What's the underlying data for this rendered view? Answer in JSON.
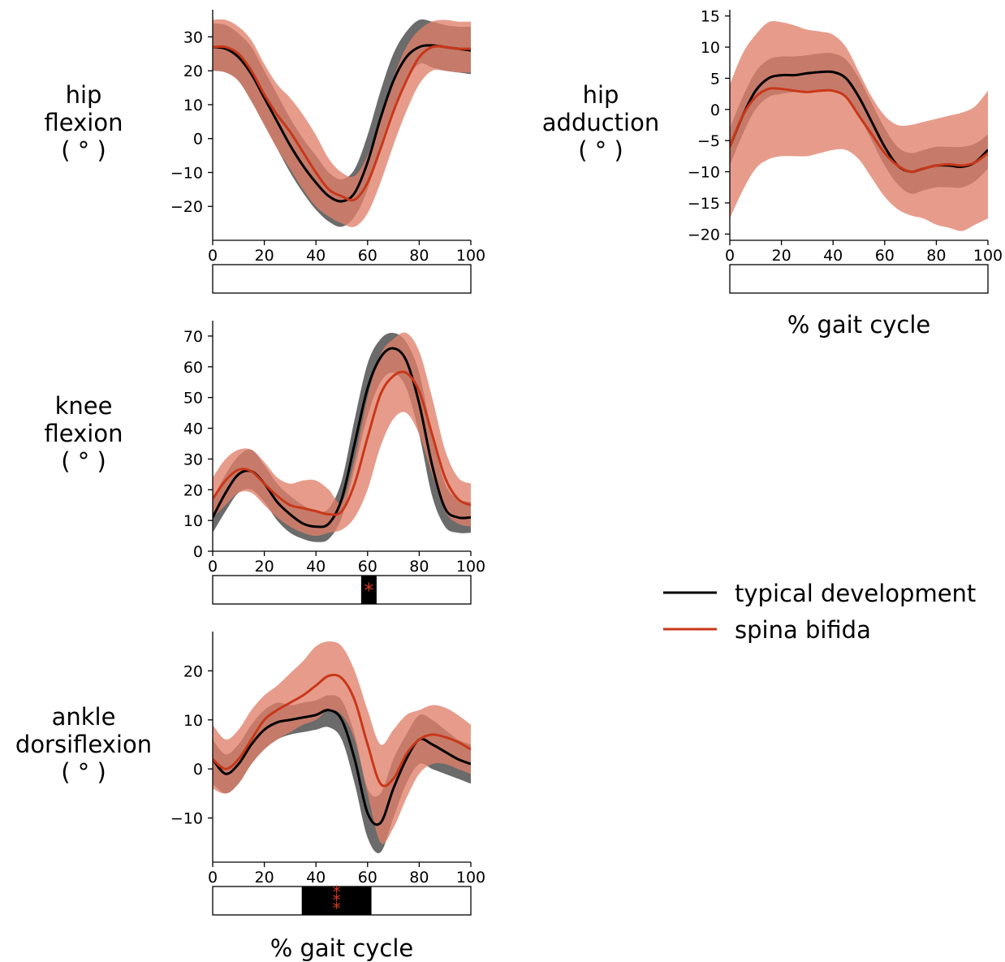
{
  "colors": {
    "typical": "#000000",
    "typical_band": "#6b6b6b",
    "spina": "#c8381a",
    "spina_band": "#e0806a",
    "significance_bar": "#000000",
    "star": "#d83a1f"
  },
  "legend": {
    "typical_label": "typical development",
    "spina_label": "spina bifida"
  },
  "chart_data": [
    {
      "id": "hip-flexion",
      "type": "line",
      "panel_label": [
        "hip",
        "flexion",
        "( ° )"
      ],
      "xlabel": "",
      "ylim": [
        -30,
        38
      ],
      "xlim": [
        0,
        100
      ],
      "xticks": [
        "0",
        "20",
        "40",
        "60",
        "80",
        "100"
      ],
      "yticks": [
        {
          "value": -20,
          "label": "−20"
        },
        {
          "value": -10,
          "label": "−10"
        },
        {
          "value": 0,
          "label": "0"
        },
        {
          "value": 10,
          "label": "10"
        },
        {
          "value": 20,
          "label": "20"
        },
        {
          "value": 30,
          "label": "30"
        }
      ],
      "x": [
        0,
        5,
        10,
        15,
        20,
        25,
        30,
        35,
        40,
        45,
        50,
        55,
        60,
        65,
        70,
        75,
        80,
        85,
        90,
        95,
        100
      ],
      "series": [
        {
          "name": "typical development",
          "mean": [
            27,
            26.5,
            24,
            19,
            12,
            5,
            -2,
            -8,
            -13,
            -17,
            -18.5,
            -16,
            -7,
            6,
            17,
            24,
            27,
            27.5,
            27,
            26.5,
            26
          ],
          "lower": [
            20,
            19.5,
            17,
            11,
            4,
            -3,
            -10,
            -16,
            -21,
            -24.5,
            -26,
            -23,
            -15,
            -2,
            9,
            17,
            22,
            21,
            20,
            19.5,
            19
          ],
          "upper": [
            34,
            33.5,
            31,
            27,
            20,
            13,
            6,
            0,
            -5,
            -10,
            -12,
            -9,
            1,
            14,
            25,
            31.5,
            35,
            34.5,
            33.5,
            33,
            33
          ]
        },
        {
          "name": "spina bifida",
          "mean": [
            27,
            27,
            25,
            20,
            13,
            7,
            2,
            -4,
            -10,
            -15,
            -17,
            -18,
            -13,
            -3,
            8,
            17,
            24,
            27,
            27,
            26.5,
            26.5
          ],
          "lower": [
            20,
            19.5,
            17,
            11,
            4,
            -3,
            -9,
            -15,
            -20,
            -23,
            -25,
            -26,
            -22,
            -13,
            -2,
            8,
            16,
            20,
            20,
            19.5,
            19.5
          ],
          "upper": [
            35,
            35,
            33,
            29,
            22,
            16,
            12,
            7,
            1,
            -6,
            -10,
            -11,
            -5,
            6,
            18,
            27,
            32,
            34.5,
            35,
            34.5,
            34.5
          ]
        }
      ],
      "significance": []
    },
    {
      "id": "hip-adduction",
      "type": "line",
      "panel_label": [
        "hip",
        "adduction",
        "( ° )"
      ],
      "xlabel": "% gait cycle",
      "ylim": [
        -21,
        16
      ],
      "xlim": [
        0,
        100
      ],
      "xticks": [
        "0",
        "20",
        "40",
        "60",
        "80",
        "100"
      ],
      "yticks": [
        {
          "value": -20,
          "label": "−20"
        },
        {
          "value": -15,
          "label": "−15"
        },
        {
          "value": -10,
          "label": "−10"
        },
        {
          "value": -5,
          "label": "−5"
        },
        {
          "value": 0,
          "label": "0"
        },
        {
          "value": 5,
          "label": "5"
        },
        {
          "value": 10,
          "label": "10"
        },
        {
          "value": 15,
          "label": "15"
        }
      ],
      "x": [
        0,
        5,
        10,
        15,
        20,
        25,
        30,
        35,
        40,
        45,
        50,
        55,
        60,
        65,
        70,
        75,
        80,
        85,
        90,
        95,
        100
      ],
      "series": [
        {
          "name": "typical development",
          "mean": [
            -6,
            -1,
            3,
            5,
            5.5,
            5.5,
            5.8,
            6,
            6,
            5,
            2,
            -2,
            -6,
            -9,
            -10,
            -9.5,
            -9,
            -9,
            -9.2,
            -8.5,
            -6.5
          ],
          "lower": [
            -9,
            -4,
            0,
            2,
            2.5,
            2.8,
            3,
            3,
            3,
            2,
            -1,
            -5,
            -9,
            -12,
            -13.5,
            -13,
            -12.5,
            -12.5,
            -12.5,
            -11.5,
            -9.5
          ],
          "upper": [
            -3,
            2,
            6,
            8,
            8.5,
            8.5,
            8.7,
            9,
            9,
            8,
            5,
            1,
            -3,
            -6,
            -7,
            -6.5,
            -6,
            -6,
            -6,
            -5.5,
            -4
          ]
        },
        {
          "name": "spina bifida",
          "mean": [
            -6,
            -1,
            2,
            3.3,
            3.3,
            3,
            2.8,
            3,
            3,
            2,
            -1,
            -4,
            -7,
            -9,
            -10,
            -9.5,
            -9,
            -8.8,
            -9,
            -8.5,
            -7
          ],
          "lower": [
            -17.5,
            -13,
            -9.5,
            -8,
            -7.5,
            -7.5,
            -7.5,
            -7,
            -6.5,
            -6.5,
            -8,
            -11,
            -14,
            -16,
            -17,
            -17.5,
            -18.5,
            -19,
            -19.5,
            -18.5,
            -17.5
          ],
          "upper": [
            4,
            9,
            12,
            14,
            14,
            13.5,
            12.8,
            12.5,
            12,
            10,
            6,
            2,
            -1,
            -2.5,
            -2.5,
            -2,
            -1.5,
            -1,
            -0.5,
            0.5,
            3
          ]
        }
      ],
      "significance": []
    },
    {
      "id": "knee-flexion",
      "type": "line",
      "panel_label": [
        "knee",
        "flexion",
        "( ° )"
      ],
      "xlabel": "",
      "ylim": [
        0,
        75
      ],
      "xlim": [
        0,
        100
      ],
      "xticks": [
        "0",
        "20",
        "40",
        "60",
        "80",
        "100"
      ],
      "yticks": [
        {
          "value": 0,
          "label": "0"
        },
        {
          "value": 10,
          "label": "10"
        },
        {
          "value": 20,
          "label": "20"
        },
        {
          "value": 30,
          "label": "30"
        },
        {
          "value": 40,
          "label": "40"
        },
        {
          "value": 50,
          "label": "50"
        },
        {
          "value": 60,
          "label": "60"
        },
        {
          "value": 70,
          "label": "70"
        }
      ],
      "x": [
        0,
        5,
        10,
        15,
        20,
        25,
        30,
        35,
        40,
        45,
        50,
        55,
        60,
        65,
        70,
        75,
        80,
        85,
        90,
        95,
        100
      ],
      "series": [
        {
          "name": "typical development",
          "mean": [
            11,
            19,
            25,
            26,
            22,
            16,
            12,
            9,
            8,
            9,
            17,
            35,
            53,
            63,
            66,
            62,
            48,
            28,
            14,
            11,
            11
          ],
          "lower": [
            6,
            13,
            19,
            20,
            16,
            10,
            6,
            4,
            3,
            4,
            11,
            27,
            44,
            55,
            58,
            53,
            38,
            18,
            8,
            6,
            6
          ],
          "upper": [
            17,
            25,
            31,
            33,
            28,
            22,
            18,
            15,
            13,
            14,
            23,
            43,
            61,
            69,
            71,
            68,
            58,
            38,
            22,
            17,
            16
          ]
        },
        {
          "name": "spina bifida",
          "mean": [
            17,
            23,
            26.5,
            26,
            22,
            18,
            15,
            14,
            13,
            12,
            13,
            22,
            37,
            51,
            57,
            58,
            52,
            38,
            24,
            17,
            15
          ],
          "lower": [
            11,
            15,
            19,
            19,
            15,
            11,
            8,
            6,
            5,
            6,
            7,
            11,
            20,
            34,
            43,
            45,
            38,
            25,
            13,
            9,
            8
          ],
          "upper": [
            24,
            30,
            33,
            33,
            29,
            24,
            22,
            23,
            23,
            20,
            16,
            30,
            50,
            64,
            69,
            71,
            65,
            50,
            33,
            24,
            22
          ]
        }
      ],
      "significance": [
        {
          "start": 57.5,
          "end": 63.5,
          "label": "*"
        }
      ]
    },
    {
      "id": "ankle-dorsiflexion",
      "type": "line",
      "panel_label": [
        "ankle",
        "dorsiflexion",
        "( ° )"
      ],
      "xlabel": "% gait cycle",
      "ylim": [
        -19,
        28
      ],
      "xlim": [
        0,
        100
      ],
      "xticks": [
        "0",
        "20",
        "40",
        "60",
        "80",
        "100"
      ],
      "yticks": [
        {
          "value": -10,
          "label": "−10"
        },
        {
          "value": 0,
          "label": "0"
        },
        {
          "value": 10,
          "label": "10"
        },
        {
          "value": 20,
          "label": "20"
        }
      ],
      "x": [
        0,
        5,
        10,
        15,
        20,
        25,
        30,
        35,
        40,
        45,
        50,
        55,
        60,
        65,
        70,
        75,
        80,
        85,
        90,
        95,
        100
      ],
      "series": [
        {
          "name": "typical development",
          "mean": [
            2,
            -1,
            1,
            5,
            8,
            9.5,
            10,
            10.5,
            11,
            12,
            10,
            2,
            -9,
            -11,
            -4,
            2,
            6,
            5,
            3.5,
            2,
            1
          ],
          "lower": [
            -3,
            -5,
            -3,
            1,
            4,
            6,
            7,
            7.5,
            8,
            8.5,
            6,
            -3,
            -14,
            -17,
            -10,
            -3,
            1,
            0,
            -1,
            -2,
            -3
          ],
          "upper": [
            6,
            3,
            5,
            9,
            12,
            13.5,
            13,
            13.5,
            14,
            15,
            14,
            7,
            -4,
            -5,
            2,
            7,
            11,
            10,
            8,
            6,
            5
          ]
        },
        {
          "name": "spina bifida",
          "mean": [
            2,
            0,
            2,
            6,
            10,
            12,
            13.5,
            15,
            17,
            19,
            18.5,
            14,
            5,
            -3,
            -2,
            3,
            6,
            7,
            6.5,
            5.5,
            4
          ],
          "lower": [
            -4,
            -5,
            -3,
            1,
            4,
            6,
            7.5,
            9,
            10,
            12,
            11,
            6,
            -5,
            -15,
            -12,
            -6,
            -1,
            1,
            1,
            0,
            -1
          ],
          "upper": [
            9,
            6,
            8,
            12,
            15,
            17,
            19.5,
            22,
            25,
            26,
            25,
            20,
            12,
            5,
            8,
            11,
            12,
            13,
            12.5,
            11,
            9
          ]
        }
      ],
      "significance": [
        {
          "start": 34.5,
          "end": 61.5,
          "label": "***"
        }
      ]
    }
  ]
}
